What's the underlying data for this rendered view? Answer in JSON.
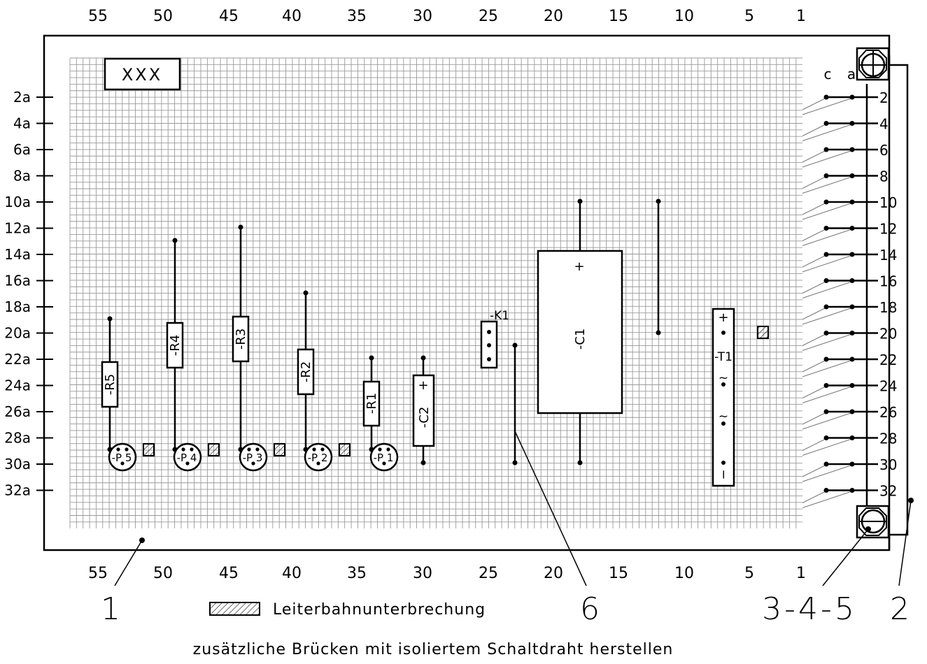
{
  "board": {
    "label": "XXX",
    "top_scale": [
      "55",
      "50",
      "45",
      "40",
      "35",
      "30",
      "25",
      "20",
      "15",
      "10",
      "5",
      "1"
    ],
    "bottom_scale": [
      "55",
      "50",
      "45",
      "40",
      "35",
      "30",
      "25",
      "20",
      "15",
      "10",
      "5",
      "1"
    ],
    "left_scale": [
      "2a",
      "4a",
      "6a",
      "8a",
      "10a",
      "12a",
      "14a",
      "16a",
      "18a",
      "20a",
      "22a",
      "24a",
      "26a",
      "28a",
      "30a",
      "32a"
    ],
    "connector_columns": {
      "c": "c",
      "a": "a"
    },
    "connector_pins": [
      "2",
      "4",
      "6",
      "8",
      "10",
      "12",
      "14",
      "16",
      "18",
      "20",
      "22",
      "24",
      "26",
      "28",
      "30",
      "32"
    ]
  },
  "components": {
    "R5": "-R5",
    "R4": "-R4",
    "R3": "-R3",
    "R2": "-R2",
    "R1": "-R1",
    "C2": "-C2",
    "C2_plus": "+",
    "K1": "-K1",
    "C1": "-C1",
    "C1_plus": "+",
    "T1": "-T1",
    "T1_plus": "+",
    "T1_ac1": "~",
    "T1_ac2": "~",
    "T1_minus": "−",
    "P5": "-P 5",
    "P4": "-P 4",
    "P3": "-P 3",
    "P2": "-P 2",
    "P1": "-P 1"
  },
  "callouts": {
    "c1": "1",
    "c6": "6",
    "c345": "3-4-5",
    "c2": "2"
  },
  "legend": {
    "interruption": "Leiterbahnunterbrechung",
    "note": "zusätzliche Brücken mit isoliertem Schaltdraht herstellen"
  }
}
